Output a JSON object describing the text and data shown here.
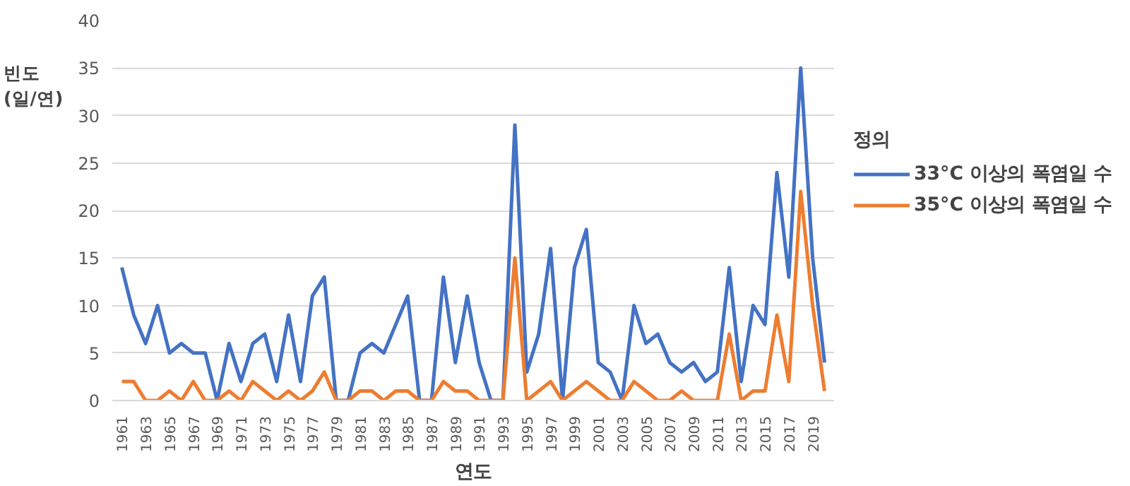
{
  "chart_data": {
    "type": "line",
    "xlabel": "연도",
    "ylabel": "빈도\n(일/연)",
    "legend_title": "정의",
    "categories": [
      "1961",
      null,
      "1963",
      null,
      "1965",
      null,
      "1967",
      null,
      "1969",
      null,
      "1971",
      null,
      "1973",
      null,
      "1975",
      null,
      "1977",
      null,
      "1979",
      null,
      "1981",
      null,
      "1983",
      null,
      "1985",
      null,
      "1987",
      null,
      "1989",
      null,
      "1991",
      null,
      "1993",
      null,
      "1995",
      null,
      "1997",
      null,
      "1999",
      null,
      "2001",
      null,
      "2003",
      null,
      "2005",
      null,
      "2007",
      null,
      "2009",
      null,
      "2011",
      null,
      "2013",
      null,
      "2015",
      null,
      "2017",
      null,
      "2019",
      null
    ],
    "series": [
      {
        "name": "33°C 이상의 폭염일 수",
        "color": "#4472c4",
        "values": [
          14,
          9,
          6,
          10,
          5,
          6,
          5,
          5,
          0,
          6,
          2,
          6,
          7,
          2,
          9,
          2,
          11,
          13,
          0,
          0,
          5,
          6,
          5,
          8,
          11,
          0,
          0,
          13,
          4,
          11,
          4,
          0,
          0,
          29,
          3,
          7,
          16,
          0,
          14,
          18,
          4,
          3,
          0,
          10,
          6,
          7,
          4,
          3,
          4,
          2,
          3,
          14,
          2,
          10,
          8,
          24,
          13,
          35,
          15,
          4
        ]
      },
      {
        "name": "35°C 이상의 폭염일 수",
        "color": "#ed7d31",
        "values": [
          2,
          2,
          0,
          0,
          1,
          0,
          2,
          0,
          0,
          1,
          0,
          2,
          1,
          0,
          1,
          0,
          1,
          3,
          0,
          0,
          1,
          1,
          0,
          1,
          1,
          0,
          0,
          2,
          1,
          1,
          0,
          0,
          0,
          15,
          0,
          1,
          2,
          0,
          1,
          2,
          1,
          0,
          0,
          2,
          1,
          0,
          0,
          1,
          0,
          0,
          0,
          7,
          0,
          1,
          1,
          9,
          2,
          22,
          10,
          1
        ]
      }
    ],
    "ylim": [
      0,
      40
    ],
    "yticks": [
      0,
      5,
      10,
      15,
      20,
      25,
      30,
      35,
      40
    ],
    "grid": "y",
    "legend": "right",
    "line_style": "solid",
    "marker": "none"
  }
}
